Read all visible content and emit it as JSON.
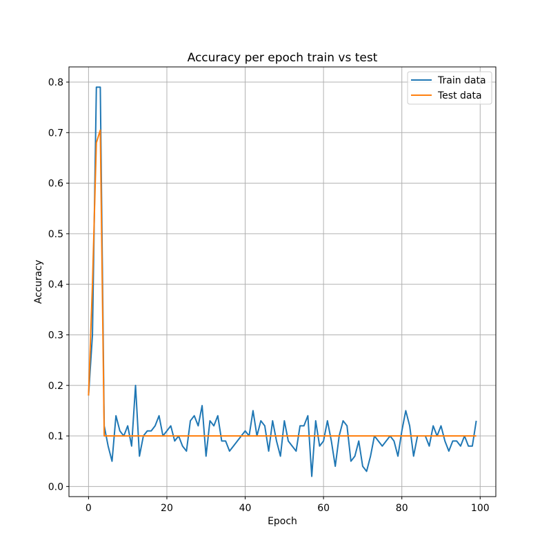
{
  "chart_data": {
    "type": "line",
    "title": "Accuracy per epoch train vs test",
    "xlabel": "Epoch",
    "ylabel": "Accuracy",
    "xlim": [
      -5,
      104
    ],
    "ylim": [
      -0.02,
      0.83
    ],
    "xticks": [
      0,
      20,
      40,
      60,
      80,
      100
    ],
    "xtick_labels": [
      "0",
      "20",
      "40",
      "60",
      "80",
      "100"
    ],
    "yticks": [
      0.0,
      0.1,
      0.2,
      0.3,
      0.4,
      0.5,
      0.6,
      0.7,
      0.8
    ],
    "ytick_labels": [
      "0.0",
      "0.1",
      "0.2",
      "0.3",
      "0.4",
      "0.5",
      "0.6",
      "0.7",
      "0.8"
    ],
    "grid": true,
    "legend_position": "top-right",
    "series": [
      {
        "name": "Train data",
        "color": "#1f77b4",
        "values": [
          0.18,
          0.3,
          0.79,
          0.79,
          0.12,
          0.08,
          0.05,
          0.14,
          0.11,
          0.1,
          0.12,
          0.08,
          0.2,
          0.06,
          0.1,
          0.11,
          0.11,
          0.12,
          0.14,
          0.1,
          0.11,
          0.12,
          0.09,
          0.1,
          0.08,
          0.07,
          0.13,
          0.14,
          0.12,
          0.16,
          0.06,
          0.13,
          0.12,
          0.14,
          0.09,
          0.09,
          0.07,
          0.08,
          0.09,
          0.1,
          0.11,
          0.1,
          0.15,
          0.1,
          0.13,
          0.12,
          0.07,
          0.13,
          0.09,
          0.06,
          0.13,
          0.09,
          0.08,
          0.07,
          0.12,
          0.12,
          0.14,
          0.02,
          0.13,
          0.08,
          0.09,
          0.13,
          0.09,
          0.04,
          0.1,
          0.13,
          0.12,
          0.05,
          0.06,
          0.09,
          0.04,
          0.03,
          0.06,
          0.1,
          0.09,
          0.08,
          0.09,
          0.1,
          0.09,
          0.06,
          0.11,
          0.15,
          0.12,
          0.06,
          0.1,
          0.1,
          0.1,
          0.08,
          0.12,
          0.1,
          0.12,
          0.09,
          0.07,
          0.09,
          0.09,
          0.08,
          0.1,
          0.08,
          0.08,
          0.13
        ]
      },
      {
        "name": "Test data",
        "color": "#ff7f0e",
        "values": [
          0.18,
          0.4,
          0.68,
          0.705,
          0.1,
          0.1,
          0.1,
          0.1,
          0.1,
          0.1,
          0.1,
          0.1,
          0.1,
          0.1,
          0.1,
          0.1,
          0.1,
          0.1,
          0.1,
          0.1,
          0.1,
          0.1,
          0.1,
          0.1,
          0.1,
          0.1,
          0.1,
          0.1,
          0.1,
          0.1,
          0.1,
          0.1,
          0.1,
          0.1,
          0.1,
          0.1,
          0.1,
          0.1,
          0.1,
          0.1,
          0.1,
          0.1,
          0.1,
          0.1,
          0.1,
          0.1,
          0.1,
          0.1,
          0.1,
          0.1,
          0.1,
          0.1,
          0.1,
          0.1,
          0.1,
          0.1,
          0.1,
          0.1,
          0.1,
          0.1,
          0.1,
          0.1,
          0.1,
          0.1,
          0.1,
          0.1,
          0.1,
          0.1,
          0.1,
          0.1,
          0.1,
          0.1,
          0.1,
          0.1,
          0.1,
          0.1,
          0.1,
          0.1,
          0.1,
          0.1,
          0.1,
          0.1,
          0.1,
          0.1,
          0.1,
          0.1,
          0.1,
          0.1,
          0.1,
          0.1,
          0.1,
          0.1,
          0.1,
          0.1,
          0.1,
          0.1,
          0.1,
          0.1,
          0.1,
          0.1
        ]
      }
    ]
  }
}
